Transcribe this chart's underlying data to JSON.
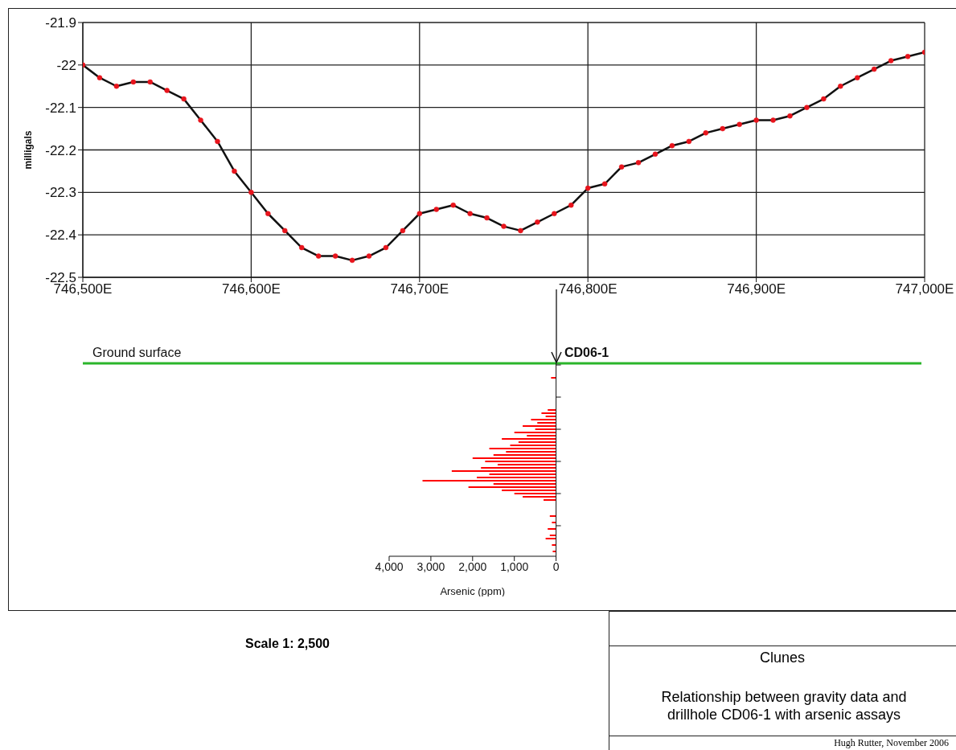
{
  "chart_data": [
    {
      "type": "line",
      "ylabel": "milligals",
      "x": [
        746500,
        746510,
        746520,
        746530,
        746540,
        746550,
        746560,
        746570,
        746580,
        746590,
        746600,
        746610,
        746620,
        746630,
        746640,
        746650,
        746660,
        746670,
        746680,
        746690,
        746700,
        746710,
        746720,
        746730,
        746740,
        746750,
        746760,
        746770,
        746780,
        746790,
        746800,
        746810,
        746820,
        746830,
        746840,
        746850,
        746860,
        746870,
        746880,
        746890,
        746900,
        746910,
        746920,
        746930,
        746940,
        746950,
        746960,
        746970,
        746980,
        746990,
        747000
      ],
      "series": [
        {
          "color": "#111111",
          "colors": [
            "#e8141c",
            "#e8141c",
            "#e8141c",
            "#e8141c",
            "#e8141c",
            "#e8141c",
            "#e8141c",
            "#e8141c",
            "#e8141c",
            "#e8141c",
            "#e8141c",
            "#e8141c",
            "#e8141c",
            "#e8141c",
            "#e8141c",
            "#e8141c",
            "#e8141c",
            "#e8141c",
            "#e8141c",
            "#e8141c",
            "#e8141c",
            "#e8141c",
            "#e8141c",
            "#e8141c",
            "#e8141c",
            "#e8141c",
            "#e8141c",
            "#e8141c",
            "#e8141c",
            "#e8141c",
            "#e8141c",
            "#e8141c",
            "#e8141c",
            "#e8141c",
            "#e8141c",
            "#e8141c",
            "#e8141c",
            "#e8141c",
            "#e8141c",
            "#e8141c",
            "#e8141c",
            "#e8141c",
            "#e8141c",
            "#e8141c",
            "#e8141c",
            "#e8141c",
            "#e8141c",
            "#e8141c",
            "#e8141c",
            "#e8141c",
            "#e8141c"
          ],
          "values": [
            -22.0,
            -22.03,
            -22.05,
            -22.04,
            -22.04,
            -22.06,
            -22.08,
            -22.13,
            -22.18,
            -22.25,
            -22.3,
            -22.35,
            -22.39,
            -22.43,
            -22.45,
            -22.45,
            -22.46,
            -22.45,
            -22.43,
            -22.39,
            -22.35,
            -22.34,
            -22.33,
            -22.35,
            -22.36,
            -22.38,
            -22.39,
            -22.37,
            -22.35,
            -22.33,
            -22.29,
            -22.28,
            -22.24,
            -22.23,
            -22.21,
            -22.19,
            -22.18,
            -22.16,
            -22.15,
            -22.14,
            -22.13,
            -22.13,
            -22.12,
            -22.1,
            -22.08,
            -22.05,
            -22.03,
            -22.01,
            -21.99,
            -21.98,
            -21.97
          ]
        }
      ],
      "xlim": [
        746500,
        747000
      ],
      "xticks": [
        {
          "value": 746500,
          "label": "746,500E"
        },
        {
          "value": 746600,
          "label": "746,600E"
        },
        {
          "value": 746700,
          "label": "746,700E"
        },
        {
          "value": 746800,
          "label": "746,800E"
        },
        {
          "value": 746900,
          "label": "746,900E"
        },
        {
          "value": 747000,
          "label": "747,000E"
        }
      ],
      "ylim": [
        -22.5,
        -21.9
      ],
      "yticks": [
        -22.5,
        -22.4,
        -22.3,
        -22.2,
        -22.1,
        -22,
        -21.9
      ],
      "grid": true,
      "legend": false,
      "marker": "circle",
      "line_style": "solid",
      "annotations": [
        "Scale 1: 2,500",
        "Clunes",
        "Relationship between gravity data and drillhole CD06-1 with arsenic assays",
        "Hugh Rutter, November 2006"
      ]
    },
    {
      "type": "bar",
      "orientation": "horizontal",
      "xlabel": "Arsenic (ppm)",
      "categories": [
        null,
        null,
        null,
        null,
        null,
        null,
        null,
        null,
        null,
        null,
        null,
        null,
        null,
        null,
        null,
        null,
        null,
        null,
        null,
        null,
        null,
        null,
        null,
        null,
        null,
        null,
        null,
        null,
        null,
        null,
        null,
        null,
        null,
        null,
        null,
        null,
        null,
        null,
        null,
        null,
        null,
        null,
        null,
        null,
        null,
        null,
        null,
        null,
        null,
        null,
        null,
        null,
        null,
        null,
        null,
        null,
        null,
        null,
        null,
        null
      ],
      "values": [
        0,
        0,
        0,
        0,
        120,
        0,
        0,
        0,
        0,
        0,
        0,
        0,
        0,
        0,
        200,
        350,
        250,
        600,
        450,
        800,
        500,
        1000,
        700,
        1300,
        900,
        1100,
        1600,
        1200,
        1500,
        2000,
        1700,
        1400,
        1800,
        2500,
        1600,
        1900,
        3200,
        1500,
        2100,
        1300,
        1000,
        800,
        300,
        0,
        0,
        0,
        0,
        150,
        0,
        100,
        0,
        200,
        0,
        150,
        250,
        0,
        100,
        0,
        80,
        0
      ],
      "color": "#ff0000",
      "xlim": [
        4000,
        0
      ],
      "xticks": [
        {
          "value": 0,
          "label": "0"
        },
        {
          "value": 1000,
          "label": "1,000"
        },
        {
          "value": 2000,
          "label": "2,000"
        },
        {
          "value": 3000,
          "label": "3,000"
        },
        {
          "value": 4000,
          "label": "4,000"
        }
      ],
      "legend": false,
      "annotations": [
        "Ground surface",
        "CD06-1"
      ]
    }
  ]
}
